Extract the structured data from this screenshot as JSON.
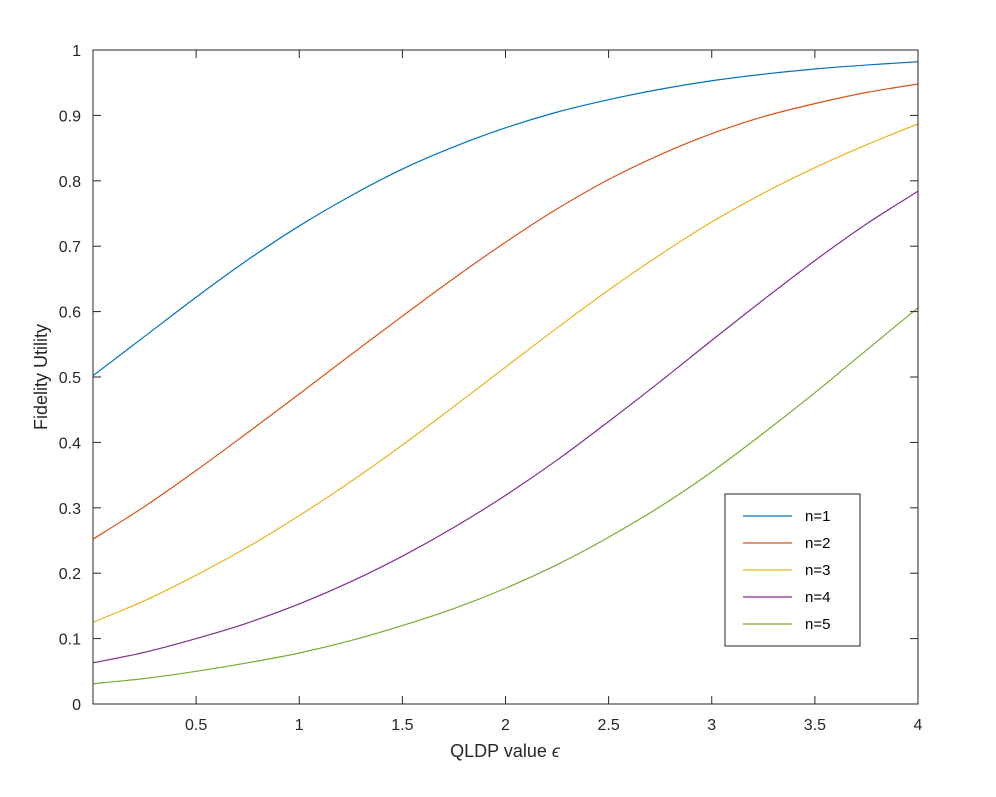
{
  "chart_data": {
    "type": "line",
    "xlabel": "QLDP value",
    "xlabel_symbol": "ϵ",
    "ylabel": "Fidelity Utility",
    "xlim": [
      0,
      4
    ],
    "ylim": [
      0,
      1
    ],
    "xticks": [
      0.5,
      1,
      1.5,
      2,
      2.5,
      3,
      3.5,
      4
    ],
    "xtick_labels": [
      "0.5",
      "1",
      "1.5",
      "2",
      "2.5",
      "3",
      "3.5",
      "4"
    ],
    "yticks": [
      0,
      0.1,
      0.2,
      0.3,
      0.4,
      0.5,
      0.6,
      0.7,
      0.8,
      0.9,
      1
    ],
    "ytick_labels": [
      "0",
      "0.1",
      "0.2",
      "0.3",
      "0.4",
      "0.5",
      "0.6",
      "0.7",
      "0.8",
      "0.9",
      "1"
    ],
    "grid": false,
    "legend_position": "bottom-right",
    "x": [
      0,
      0.25,
      0.5,
      0.75,
      1,
      1.25,
      1.5,
      1.75,
      2,
      2.25,
      2.5,
      2.75,
      3,
      3.25,
      3.5,
      3.75,
      4
    ],
    "series": [
      {
        "name": "n=1",
        "color": "#0072BD",
        "values": [
          0.502,
          0.562,
          0.622,
          0.679,
          0.731,
          0.777,
          0.818,
          0.852,
          0.881,
          0.905,
          0.924,
          0.94,
          0.953,
          0.963,
          0.971,
          0.977,
          0.982
        ]
      },
      {
        "name": "n=2",
        "color": "#D95319",
        "values": [
          0.252,
          0.302,
          0.357,
          0.415,
          0.474,
          0.534,
          0.593,
          0.651,
          0.706,
          0.757,
          0.802,
          0.84,
          0.872,
          0.898,
          0.918,
          0.935,
          0.948
        ]
      },
      {
        "name": "n=3",
        "color": "#EDB120",
        "values": [
          0.125,
          0.158,
          0.197,
          0.24,
          0.288,
          0.34,
          0.396,
          0.455,
          0.515,
          0.575,
          0.633,
          0.687,
          0.737,
          0.781,
          0.82,
          0.855,
          0.887
        ]
      },
      {
        "name": "n=4",
        "color": "#7E2F8E",
        "values": [
          0.063,
          0.079,
          0.1,
          0.124,
          0.153,
          0.187,
          0.226,
          0.27,
          0.319,
          0.373,
          0.432,
          0.493,
          0.556,
          0.618,
          0.678,
          0.734,
          0.784
        ]
      },
      {
        "name": "n=5",
        "color": "#77AC30",
        "values": [
          0.031,
          0.039,
          0.05,
          0.063,
          0.078,
          0.097,
          0.12,
          0.146,
          0.177,
          0.213,
          0.255,
          0.302,
          0.355,
          0.414,
          0.476,
          0.541,
          0.606
        ]
      }
    ]
  },
  "colors": {
    "axis": "#262626",
    "background": "#ffffff",
    "legend_border": "#262626"
  }
}
